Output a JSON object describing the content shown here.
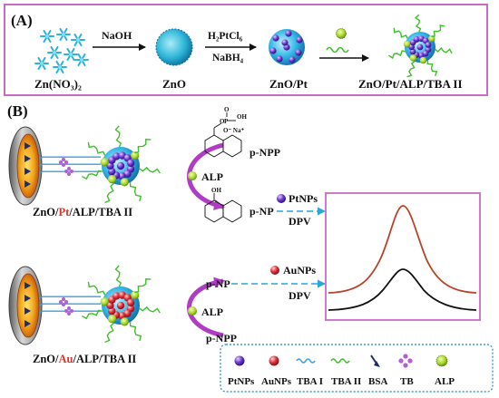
{
  "panel_a": {
    "tag": "(A)",
    "steps": {
      "naoh": "NaOH",
      "h2ptcl6": "H₂PtCl₆",
      "nabh4": "NaBH₄"
    },
    "labels": {
      "zn_nitrate": "Zn(NO₃)₂",
      "zno": "ZnO",
      "zno_pt": "ZnO/Pt",
      "conjugate": "ZnO/Pt/ALP/TBA II"
    }
  },
  "panel_b": {
    "tag": "(B)",
    "top": {
      "label_prefix": "ZnO/",
      "label_metal": "Pt",
      "label_suffix": "/ALP/TBA II",
      "substrate": "p-NPP",
      "enzyme": "ALP",
      "product": "p-NP",
      "nanoparticle": "PtNPs",
      "method": "DPV"
    },
    "bottom": {
      "label_prefix": "ZnO/",
      "label_metal": "Au",
      "label_suffix": "/ALP/TBA II",
      "product": "p-NP",
      "enzyme": "ALP",
      "substrate": "p-NPP",
      "nanoparticle": "AuNPs",
      "method": "DPV"
    },
    "structure": {
      "oh": "OH",
      "p": "P",
      "oh2": "OH",
      "o_na": "O⁻ Na⁺",
      "o_top": "O",
      "o_link": "O",
      "oh_np": "OH"
    }
  },
  "legend": {
    "items": [
      {
        "label": "PtNPs",
        "icon": "purple-sphere"
      },
      {
        "label": "AuNPs",
        "icon": "red-sphere"
      },
      {
        "label": "TBA I",
        "icon": "blue-wave"
      },
      {
        "label": "TBA II",
        "icon": "green-wave"
      },
      {
        "label": "BSA",
        "icon": "navy-arrow"
      },
      {
        "label": "TB",
        "icon": "purple-cross"
      },
      {
        "label": "ALP",
        "icon": "green-sphere"
      }
    ]
  },
  "colors": {
    "panel_border": "#c76bc4",
    "pt_label": "#d9342b",
    "au_label": "#d9342b",
    "curve_top": "#b5452a",
    "curve_bottom": "#111111",
    "arrow_purple": "#b03cc6",
    "dashed_line": "#27a6d8",
    "legend_border": "#3f9ad0"
  }
}
